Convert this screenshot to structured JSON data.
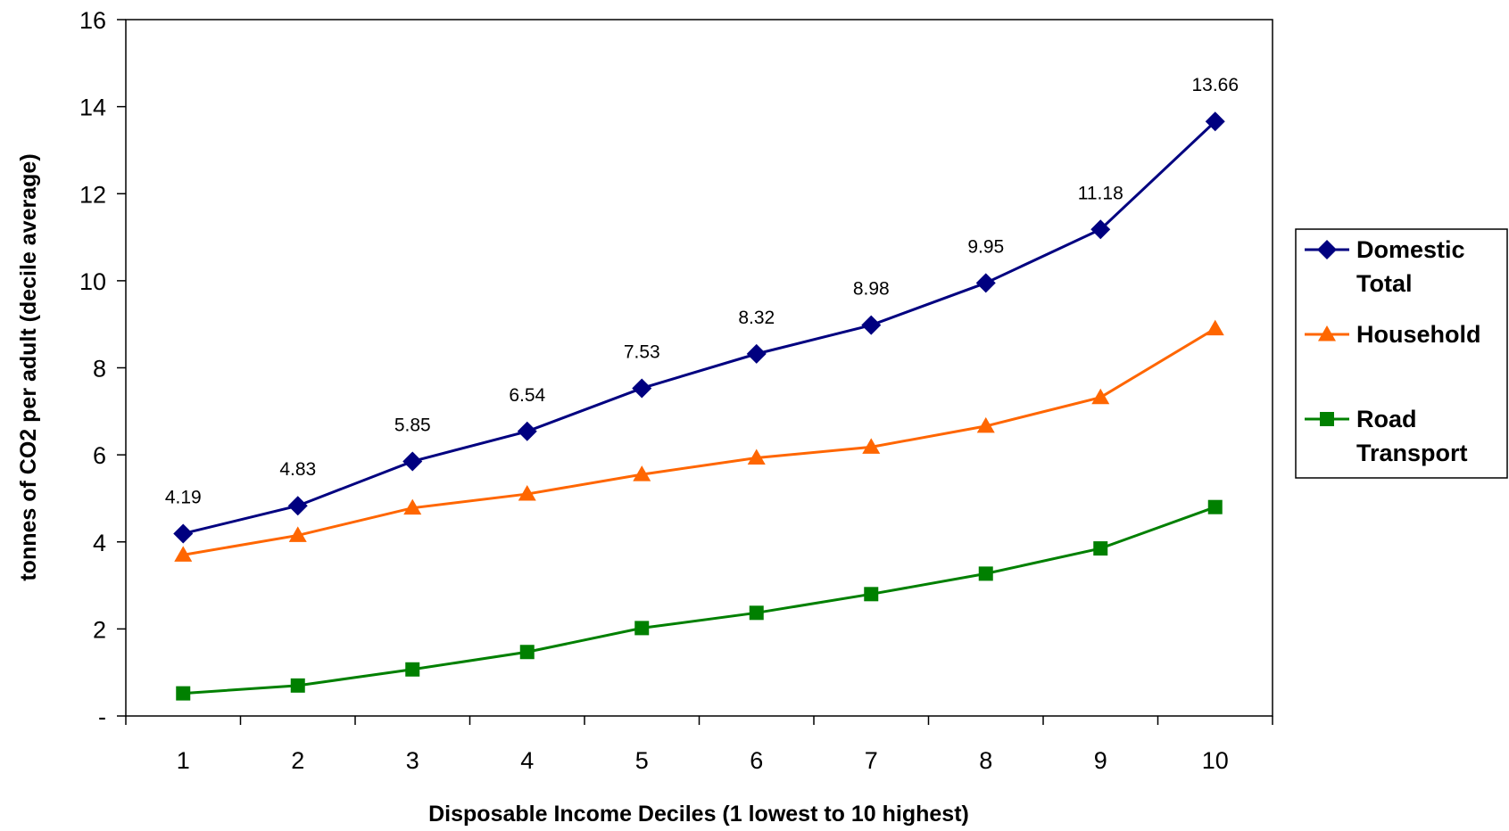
{
  "chart_data": {
    "type": "line",
    "title": "",
    "xlabel": "Disposable Income Deciles (1 lowest to 10 highest)",
    "ylabel": "tonnes of CO2 per adult (decile average)",
    "categories": [
      "1",
      "2",
      "3",
      "4",
      "5",
      "6",
      "7",
      "8",
      "9",
      "10"
    ],
    "ylim": [
      0,
      16
    ],
    "yticks": [
      {
        "value": 0,
        "label": "-"
      },
      {
        "value": 2,
        "label": "2"
      },
      {
        "value": 4,
        "label": "4"
      },
      {
        "value": 6,
        "label": "6"
      },
      {
        "value": 8,
        "label": "8"
      },
      {
        "value": 10,
        "label": "10"
      },
      {
        "value": 12,
        "label": "12"
      },
      {
        "value": 14,
        "label": "14"
      },
      {
        "value": 16,
        "label": "16"
      }
    ],
    "grid": false,
    "legend_position": "right",
    "series": [
      {
        "name": "Domestic Total",
        "legend_lines": [
          "Domestic",
          "Total"
        ],
        "color": "#000080",
        "marker": "diamond",
        "values": [
          4.19,
          4.83,
          5.85,
          6.54,
          7.53,
          8.32,
          8.98,
          9.95,
          11.18,
          13.66
        ],
        "data_labels": [
          "4.19",
          "4.83",
          "5.85",
          "6.54",
          "7.53",
          "8.32",
          "8.98",
          "9.95",
          "11.18",
          "13.66"
        ]
      },
      {
        "name": "Household",
        "legend_lines": [
          "Household"
        ],
        "color": "#FF6600",
        "marker": "triangle",
        "values": [
          3.7,
          4.15,
          4.78,
          5.1,
          5.55,
          5.93,
          6.18,
          6.66,
          7.32,
          8.9
        ]
      },
      {
        "name": "Road Transport",
        "legend_lines": [
          "Road",
          "Transport"
        ],
        "color": "#008000",
        "marker": "square",
        "values": [
          0.52,
          0.7,
          1.07,
          1.47,
          2.02,
          2.37,
          2.8,
          3.27,
          3.85,
          4.8
        ]
      }
    ]
  }
}
